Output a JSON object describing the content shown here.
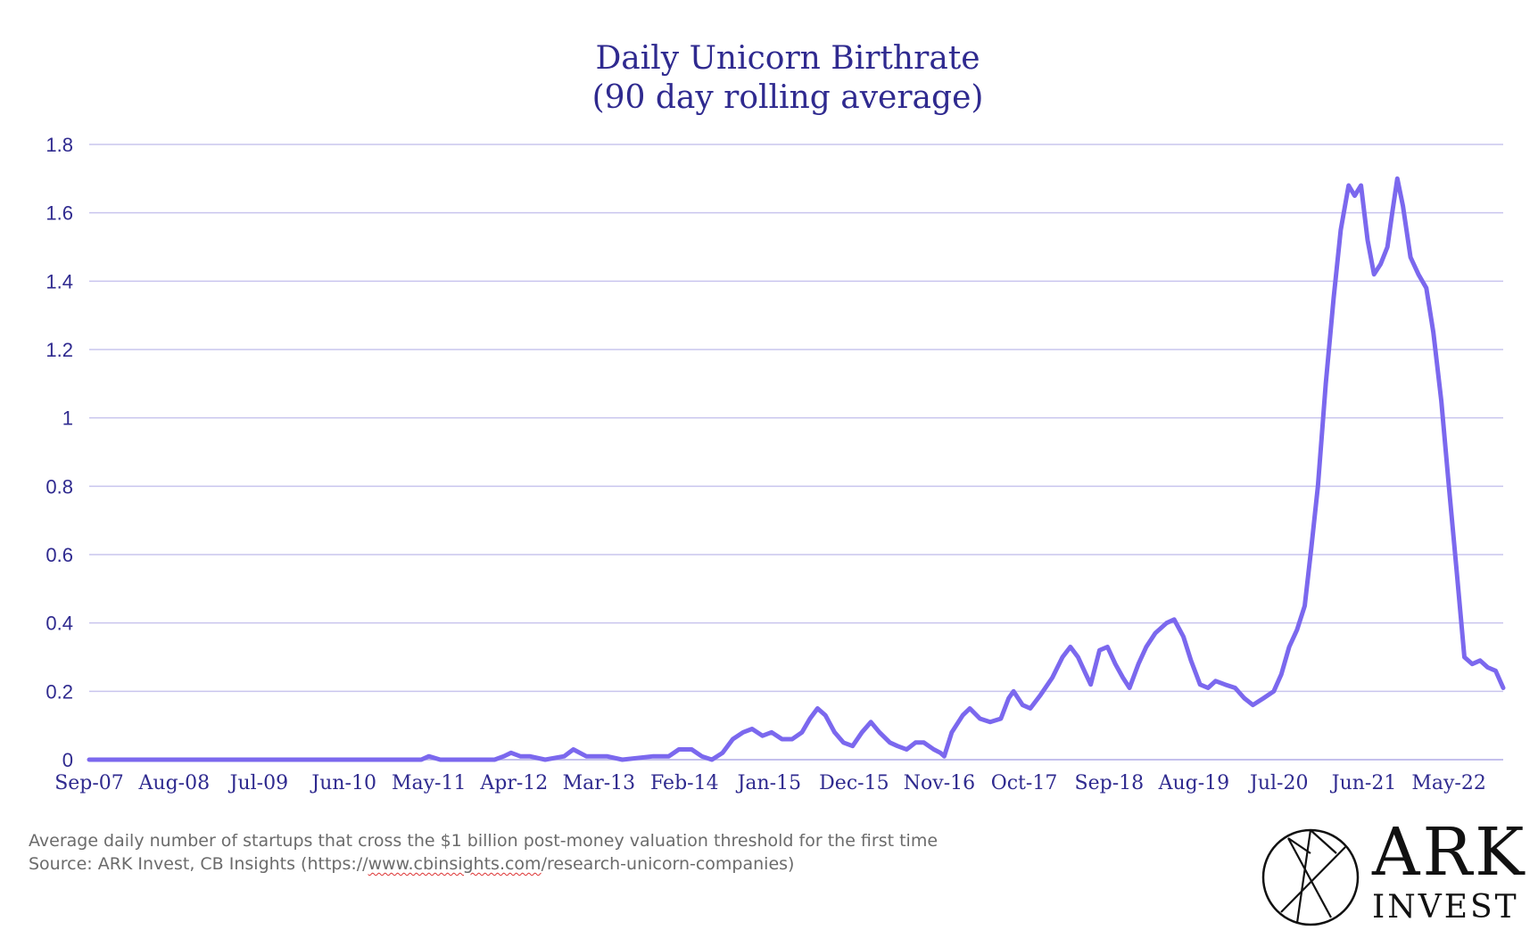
{
  "chart_data": {
    "type": "line",
    "title": "Daily Unicorn Birthrate",
    "subtitle": "(90 day rolling average)",
    "xlabel": "",
    "ylabel": "",
    "ylim": [
      0,
      1.8
    ],
    "yticks": [
      "0",
      "0.2",
      "0.4",
      "0.6",
      "0.8",
      "1",
      "1.2",
      "1.4",
      "1.6",
      "1.8"
    ],
    "xlim": [
      "2007-09-01",
      "2022-12-01"
    ],
    "xticks": [
      {
        "date": "2007-09-01",
        "label": "Sep-07"
      },
      {
        "date": "2008-08-01",
        "label": "Aug-08"
      },
      {
        "date": "2009-07-01",
        "label": "Jul-09"
      },
      {
        "date": "2010-06-01",
        "label": "Jun-10"
      },
      {
        "date": "2011-05-01",
        "label": "May-11"
      },
      {
        "date": "2012-04-01",
        "label": "Apr-12"
      },
      {
        "date": "2013-03-01",
        "label": "Mar-13"
      },
      {
        "date": "2014-02-01",
        "label": "Feb-14"
      },
      {
        "date": "2015-01-01",
        "label": "Jan-15"
      },
      {
        "date": "2015-12-01",
        "label": "Dec-15"
      },
      {
        "date": "2016-11-01",
        "label": "Nov-16"
      },
      {
        "date": "2017-10-01",
        "label": "Oct-17"
      },
      {
        "date": "2018-09-01",
        "label": "Sep-18"
      },
      {
        "date": "2019-08-01",
        "label": "Aug-19"
      },
      {
        "date": "2020-07-01",
        "label": "Jul-20"
      },
      {
        "date": "2021-06-01",
        "label": "Jun-21"
      },
      {
        "date": "2022-05-01",
        "label": "May-22"
      }
    ],
    "grid": true,
    "color": "#7b68ee",
    "series": [
      {
        "points": [
          [
            "2007-09-01",
            0
          ],
          [
            "2008-06-01",
            0
          ],
          [
            "2009-06-01",
            0
          ],
          [
            "2010-06-01",
            0
          ],
          [
            "2011-04-01",
            0
          ],
          [
            "2011-05-01",
            0.01
          ],
          [
            "2011-06-15",
            0
          ],
          [
            "2012-01-15",
            0
          ],
          [
            "2012-02-20",
            0.01
          ],
          [
            "2012-03-20",
            0.02
          ],
          [
            "2012-04-25",
            0.01
          ],
          [
            "2012-06-01",
            0.01
          ],
          [
            "2012-08-01",
            0
          ],
          [
            "2012-10-15",
            0.01
          ],
          [
            "2012-11-20",
            0.03
          ],
          [
            "2013-01-10",
            0.01
          ],
          [
            "2013-04-01",
            0.01
          ],
          [
            "2013-06-01",
            0
          ],
          [
            "2013-10-01",
            0.01
          ],
          [
            "2013-12-01",
            0.01
          ],
          [
            "2014-01-10",
            0.03
          ],
          [
            "2014-03-01",
            0.03
          ],
          [
            "2014-04-10",
            0.01
          ],
          [
            "2014-05-20",
            0
          ],
          [
            "2014-07-01",
            0.02
          ],
          [
            "2014-08-10",
            0.06
          ],
          [
            "2014-09-20",
            0.08
          ],
          [
            "2014-10-25",
            0.09
          ],
          [
            "2014-12-05",
            0.07
          ],
          [
            "2015-01-10",
            0.08
          ],
          [
            "2015-02-20",
            0.06
          ],
          [
            "2015-04-01",
            0.06
          ],
          [
            "2015-05-10",
            0.08
          ],
          [
            "2015-06-10",
            0.12
          ],
          [
            "2015-07-10",
            0.15
          ],
          [
            "2015-08-10",
            0.13
          ],
          [
            "2015-09-15",
            0.08
          ],
          [
            "2015-10-20",
            0.05
          ],
          [
            "2015-11-25",
            0.04
          ],
          [
            "2016-01-01",
            0.08
          ],
          [
            "2016-02-05",
            0.11
          ],
          [
            "2016-03-10",
            0.08
          ],
          [
            "2016-04-20",
            0.05
          ],
          [
            "2016-05-20",
            0.04
          ],
          [
            "2016-06-25",
            0.03
          ],
          [
            "2016-07-30",
            0.05
          ],
          [
            "2016-09-01",
            0.05
          ],
          [
            "2016-10-10",
            0.03
          ],
          [
            "2016-11-05",
            0.02
          ],
          [
            "2016-11-20",
            0.01
          ],
          [
            "2016-12-20",
            0.08
          ],
          [
            "2017-02-01",
            0.13
          ],
          [
            "2017-03-01",
            0.15
          ],
          [
            "2017-04-10",
            0.12
          ],
          [
            "2017-05-20",
            0.11
          ],
          [
            "2017-07-01",
            0.12
          ],
          [
            "2017-08-01",
            0.18
          ],
          [
            "2017-08-20",
            0.2
          ],
          [
            "2017-09-25",
            0.16
          ],
          [
            "2017-10-25",
            0.15
          ],
          [
            "2017-12-05",
            0.19
          ],
          [
            "2018-01-20",
            0.24
          ],
          [
            "2018-03-01",
            0.3
          ],
          [
            "2018-04-01",
            0.33
          ],
          [
            "2018-05-01",
            0.3
          ],
          [
            "2018-06-01",
            0.25
          ],
          [
            "2018-06-20",
            0.22
          ],
          [
            "2018-07-25",
            0.32
          ],
          [
            "2018-08-25",
            0.33
          ],
          [
            "2018-09-25",
            0.28
          ],
          [
            "2018-10-25",
            0.24
          ],
          [
            "2018-11-20",
            0.21
          ],
          [
            "2018-12-25",
            0.28
          ],
          [
            "2019-01-25",
            0.33
          ],
          [
            "2019-03-01",
            0.37
          ],
          [
            "2019-04-15",
            0.4
          ],
          [
            "2019-05-15",
            0.41
          ],
          [
            "2019-06-20",
            0.36
          ],
          [
            "2019-07-20",
            0.29
          ],
          [
            "2019-08-25",
            0.22
          ],
          [
            "2019-09-25",
            0.21
          ],
          [
            "2019-10-25",
            0.23
          ],
          [
            "2019-12-01",
            0.22
          ],
          [
            "2020-01-10",
            0.21
          ],
          [
            "2020-02-15",
            0.18
          ],
          [
            "2020-03-20",
            0.16
          ],
          [
            "2020-05-01",
            0.18
          ],
          [
            "2020-06-10",
            0.2
          ],
          [
            "2020-07-10",
            0.25
          ],
          [
            "2020-08-10",
            0.33
          ],
          [
            "2020-09-10",
            0.38
          ],
          [
            "2020-10-10",
            0.45
          ],
          [
            "2020-11-05",
            0.62
          ],
          [
            "2020-12-01",
            0.8
          ],
          [
            "2021-01-01",
            1.1
          ],
          [
            "2021-02-01",
            1.35
          ],
          [
            "2021-03-01",
            1.55
          ],
          [
            "2021-04-01",
            1.68
          ],
          [
            "2021-04-25",
            1.65
          ],
          [
            "2021-05-20",
            1.68
          ],
          [
            "2021-06-15",
            1.52
          ],
          [
            "2021-07-10",
            1.42
          ],
          [
            "2021-08-05",
            1.45
          ],
          [
            "2021-09-01",
            1.5
          ],
          [
            "2021-09-20",
            1.6
          ],
          [
            "2021-10-10",
            1.7
          ],
          [
            "2021-11-01",
            1.62
          ],
          [
            "2021-12-01",
            1.47
          ],
          [
            "2022-01-01",
            1.42
          ],
          [
            "2022-02-01",
            1.38
          ],
          [
            "2022-03-01",
            1.25
          ],
          [
            "2022-04-01",
            1.05
          ],
          [
            "2022-05-01",
            0.8
          ],
          [
            "2022-06-01",
            0.55
          ],
          [
            "2022-07-01",
            0.3
          ],
          [
            "2022-08-01",
            0.28
          ],
          [
            "2022-09-01",
            0.29
          ],
          [
            "2022-10-01",
            0.27
          ],
          [
            "2022-11-01",
            0.26
          ],
          [
            "2022-12-01",
            0.21
          ]
        ]
      }
    ]
  },
  "footnote": {
    "line1": "Average daily number of startups that cross the $1 billion post-money valuation threshold for the first time",
    "line2_prefix": "Source: ARK Invest, CB Insights (https://",
    "line2_url": "www.cbinsights.com",
    "line2_suffix": "/research-unicorn-companies)"
  },
  "logo": {
    "name_top": "ARK",
    "name_bottom": "INVEST"
  }
}
